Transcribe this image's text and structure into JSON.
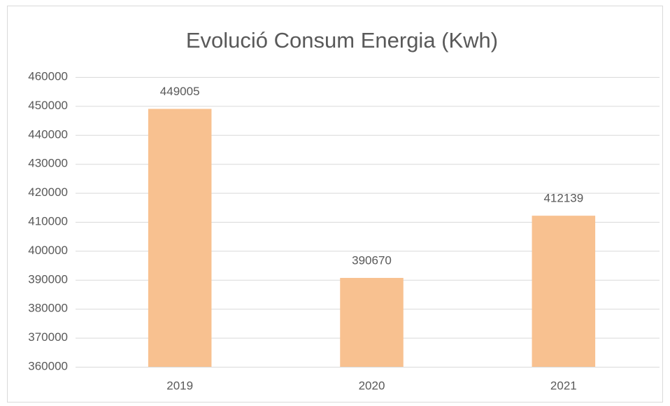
{
  "chart_data": {
    "type": "bar",
    "title": "Evolució Consum Energia (Kwh)",
    "categories": [
      "2019",
      "2020",
      "2021"
    ],
    "values": [
      449005,
      390670,
      412139
    ],
    "color": "#f8c190",
    "ylim": [
      360000,
      460000
    ],
    "yticks": [
      360000,
      370000,
      380000,
      390000,
      400000,
      410000,
      420000,
      430000,
      440000,
      450000,
      460000
    ],
    "grid": true
  }
}
